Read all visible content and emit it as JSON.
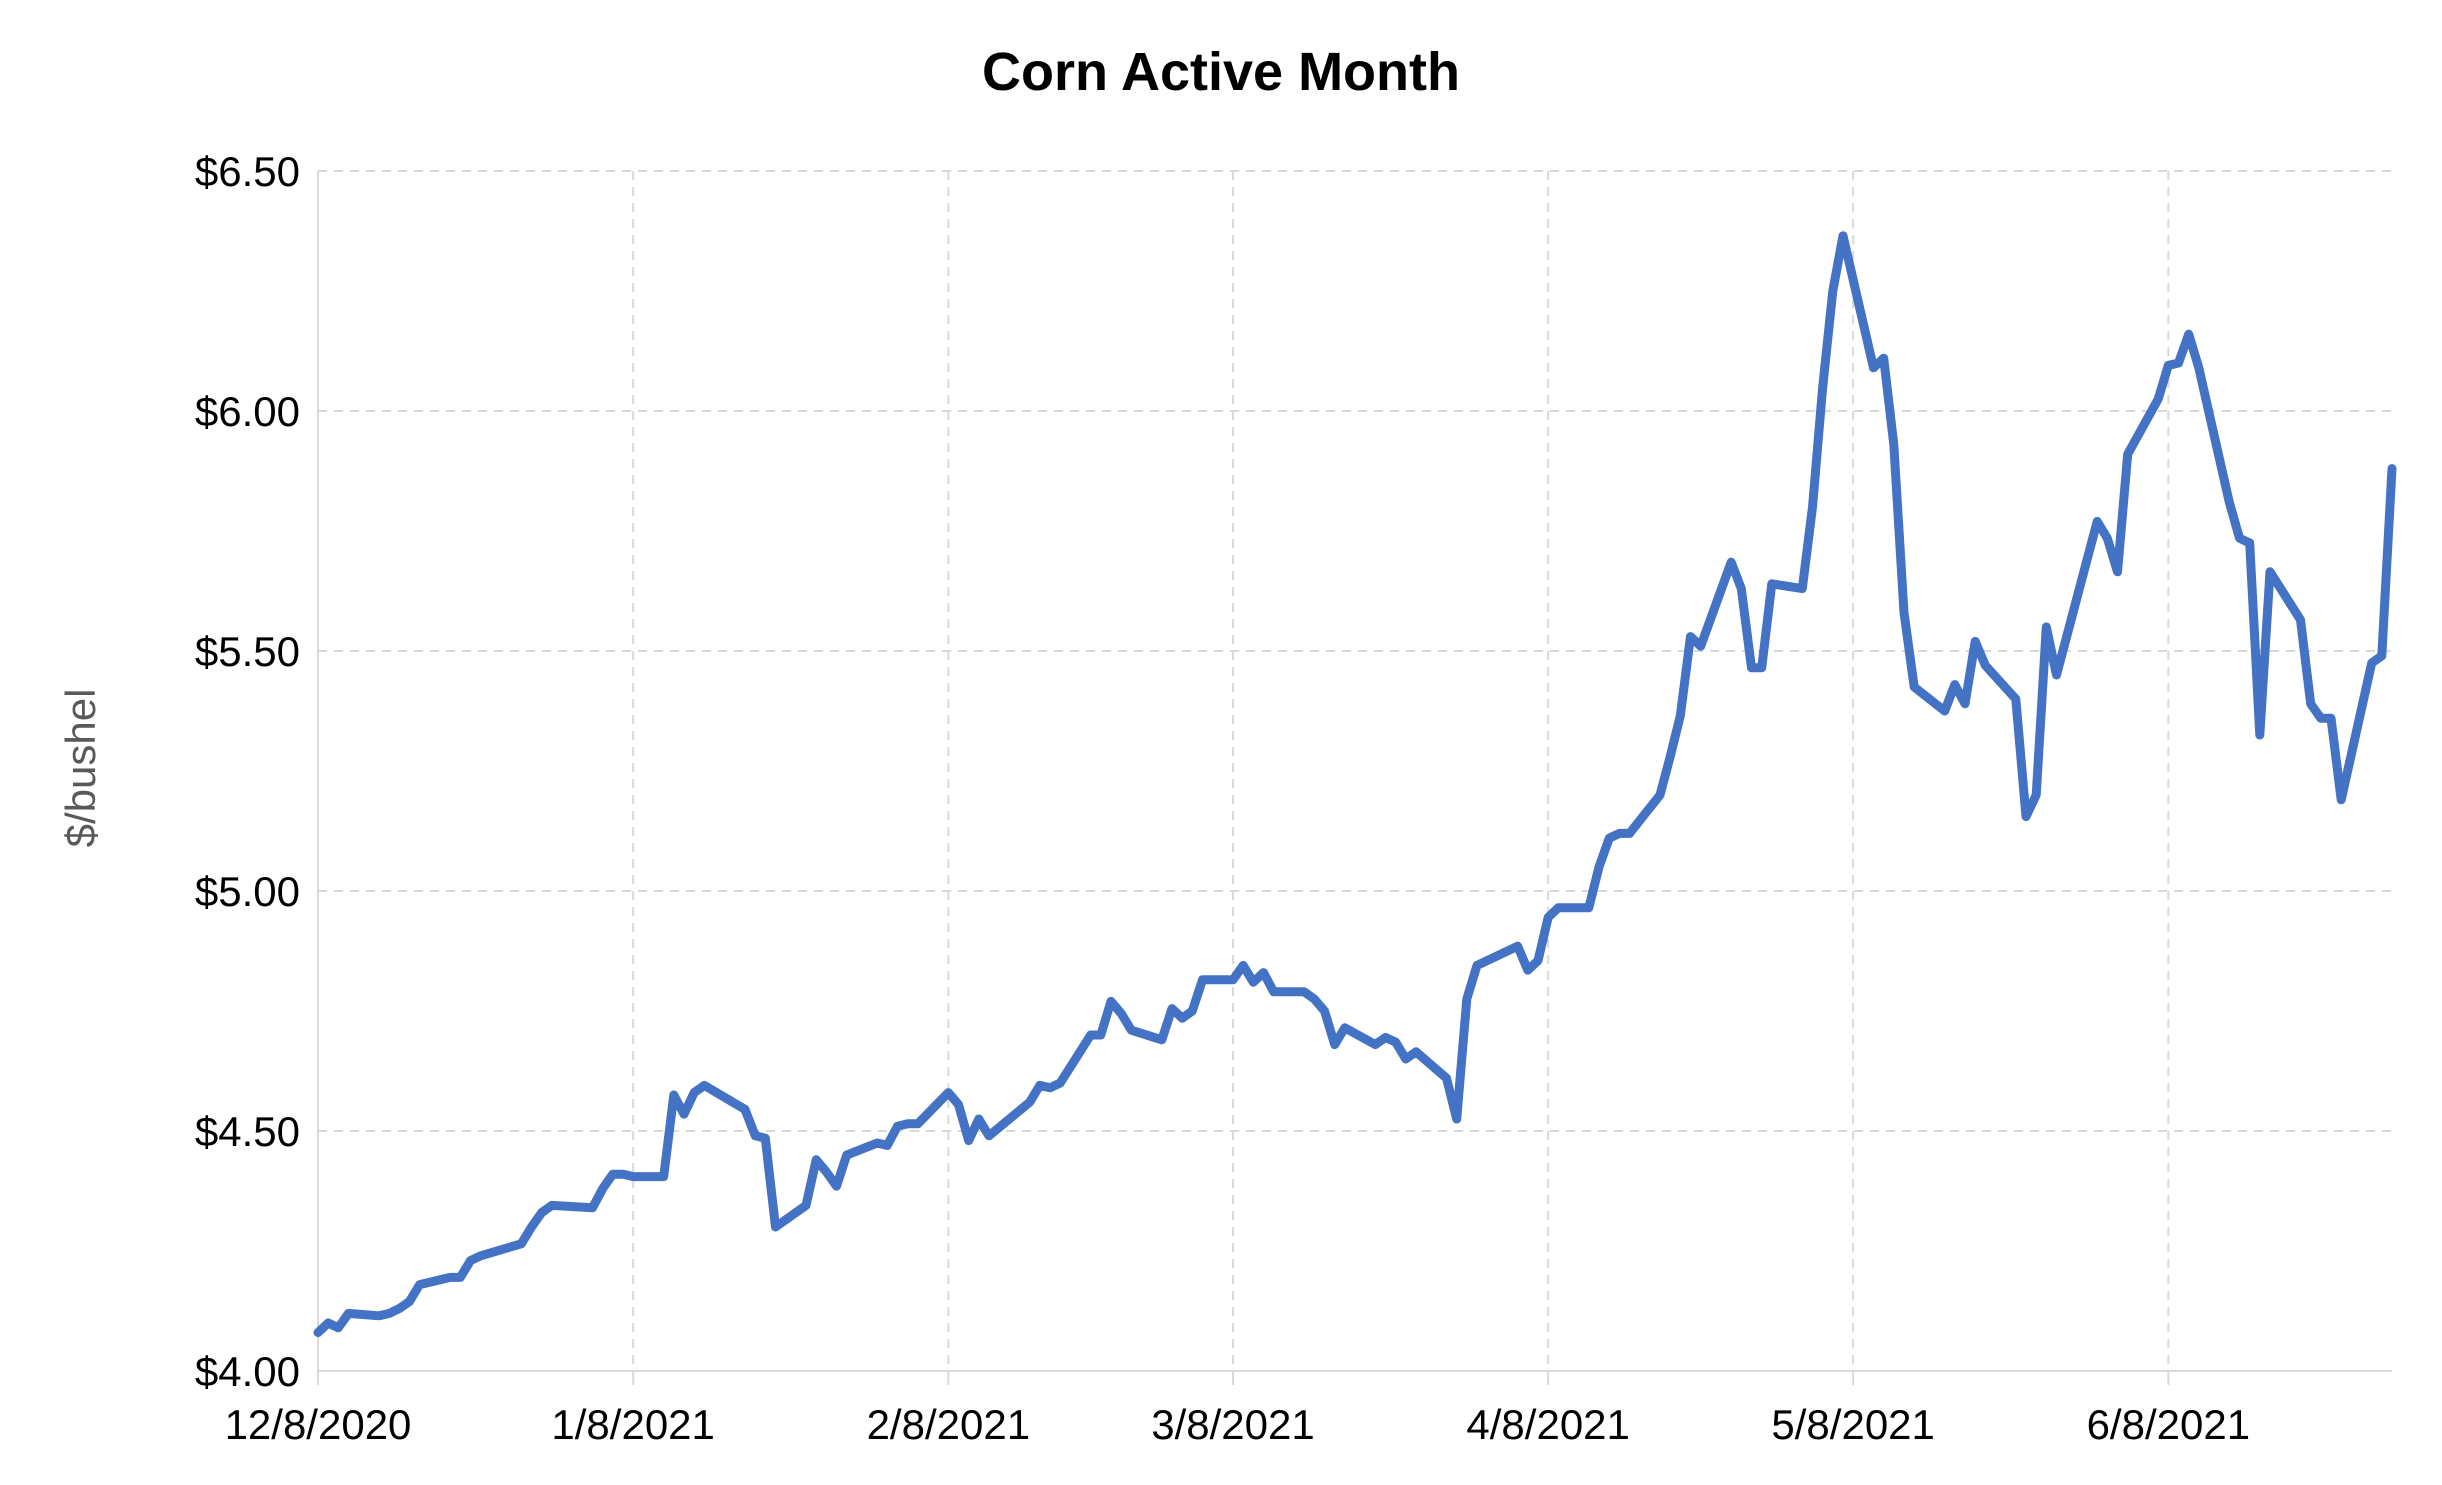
{
  "chart_data": {
    "type": "line",
    "title": "Corn Active Month",
    "xlabel": "",
    "ylabel": "$/bushel",
    "x_start": "2020-12-08",
    "x_end": "2021-06-30",
    "x_ticks": [
      {
        "date": "2020-12-08",
        "label": "12/8/2020"
      },
      {
        "date": "2021-01-08",
        "label": "1/8/2021"
      },
      {
        "date": "2021-02-08",
        "label": "2/8/2021"
      },
      {
        "date": "2021-03-08",
        "label": "3/8/2021"
      },
      {
        "date": "2021-04-08",
        "label": "4/8/2021"
      },
      {
        "date": "2021-05-08",
        "label": "5/8/2021"
      },
      {
        "date": "2021-06-08",
        "label": "6/8/2021"
      }
    ],
    "ylim": [
      4.0,
      6.5
    ],
    "y_ticks": [
      {
        "value": 4.0,
        "label": "$4.00"
      },
      {
        "value": 4.5,
        "label": "$4.50"
      },
      {
        "value": 5.0,
        "label": "$5.00"
      },
      {
        "value": 5.5,
        "label": "$5.50"
      },
      {
        "value": 6.0,
        "label": "$6.00"
      },
      {
        "value": 6.5,
        "label": "$6.50"
      }
    ],
    "grid": true,
    "legend": "none",
    "series": [
      {
        "color": "#4472c4",
        "points": [
          [
            "2020-12-08",
            4.08
          ],
          [
            "2020-12-09",
            4.1
          ],
          [
            "2020-12-10",
            4.09
          ],
          [
            "2020-12-11",
            4.12
          ],
          [
            "2020-12-14",
            4.115
          ],
          [
            "2020-12-15",
            4.12
          ],
          [
            "2020-12-16",
            4.13
          ],
          [
            "2020-12-17",
            4.145
          ],
          [
            "2020-12-18",
            4.18
          ],
          [
            "2020-12-21",
            4.195
          ],
          [
            "2020-12-22",
            4.195
          ],
          [
            "2020-12-23",
            4.23
          ],
          [
            "2020-12-24",
            4.24
          ],
          [
            "2020-12-28",
            4.265
          ],
          [
            "2020-12-29",
            4.3
          ],
          [
            "2020-12-30",
            4.33
          ],
          [
            "2020-12-31",
            4.345
          ],
          [
            "2021-01-04",
            4.34
          ],
          [
            "2021-01-05",
            4.38
          ],
          [
            "2021-01-06",
            4.41
          ],
          [
            "2021-01-07",
            4.41
          ],
          [
            "2021-01-08",
            4.405
          ],
          [
            "2021-01-11",
            4.405
          ],
          [
            "2021-01-12",
            4.575
          ],
          [
            "2021-01-13",
            4.535
          ],
          [
            "2021-01-14",
            4.58
          ],
          [
            "2021-01-15",
            4.595
          ],
          [
            "2021-01-19",
            4.545
          ],
          [
            "2021-01-20",
            4.49
          ],
          [
            "2021-01-21",
            4.485
          ],
          [
            "2021-01-22",
            4.3
          ],
          [
            "2021-01-25",
            4.345
          ],
          [
            "2021-01-26",
            4.44
          ],
          [
            "2021-01-27",
            4.415
          ],
          [
            "2021-01-28",
            4.385
          ],
          [
            "2021-01-29",
            4.45
          ],
          [
            "2021-02-01",
            4.475
          ],
          [
            "2021-02-02",
            4.47
          ],
          [
            "2021-02-03",
            4.51
          ],
          [
            "2021-02-04",
            4.515
          ],
          [
            "2021-02-05",
            4.515
          ],
          [
            "2021-02-08",
            4.58
          ],
          [
            "2021-02-09",
            4.555
          ],
          [
            "2021-02-10",
            4.48
          ],
          [
            "2021-02-11",
            4.525
          ],
          [
            "2021-02-12",
            4.49
          ],
          [
            "2021-02-16",
            4.56
          ],
          [
            "2021-02-17",
            4.595
          ],
          [
            "2021-02-18",
            4.59
          ],
          [
            "2021-02-19",
            4.6
          ],
          [
            "2021-02-22",
            4.7
          ],
          [
            "2021-02-23",
            4.7
          ],
          [
            "2021-02-24",
            4.77
          ],
          [
            "2021-02-25",
            4.745
          ],
          [
            "2021-02-26",
            4.71
          ],
          [
            "2021-03-01",
            4.69
          ],
          [
            "2021-03-02",
            4.755
          ],
          [
            "2021-03-03",
            4.735
          ],
          [
            "2021-03-04",
            4.75
          ],
          [
            "2021-03-05",
            4.815
          ],
          [
            "2021-03-08",
            4.815
          ],
          [
            "2021-03-09",
            4.845
          ],
          [
            "2021-03-10",
            4.81
          ],
          [
            "2021-03-11",
            4.83
          ],
          [
            "2021-03-12",
            4.79
          ],
          [
            "2021-03-15",
            4.79
          ],
          [
            "2021-03-16",
            4.775
          ],
          [
            "2021-03-17",
            4.75
          ],
          [
            "2021-03-18",
            4.68
          ],
          [
            "2021-03-19",
            4.715
          ],
          [
            "2021-03-22",
            4.68
          ],
          [
            "2021-03-23",
            4.695
          ],
          [
            "2021-03-24",
            4.685
          ],
          [
            "2021-03-25",
            4.65
          ],
          [
            "2021-03-26",
            4.665
          ],
          [
            "2021-03-29",
            4.61
          ],
          [
            "2021-03-30",
            4.525
          ],
          [
            "2021-03-31",
            4.775
          ],
          [
            "2021-04-01",
            4.845
          ],
          [
            "2021-04-05",
            4.885
          ],
          [
            "2021-04-06",
            4.835
          ],
          [
            "2021-04-07",
            4.855
          ],
          [
            "2021-04-08",
            4.945
          ],
          [
            "2021-04-09",
            4.965
          ],
          [
            "2021-04-12",
            4.965
          ],
          [
            "2021-04-13",
            5.05
          ],
          [
            "2021-04-14",
            5.11
          ],
          [
            "2021-04-15",
            5.12
          ],
          [
            "2021-04-16",
            5.12
          ],
          [
            "2021-04-19",
            5.2
          ],
          [
            "2021-04-20",
            5.28
          ],
          [
            "2021-04-21",
            5.365
          ],
          [
            "2021-04-22",
            5.53
          ],
          [
            "2021-04-23",
            5.51
          ],
          [
            "2021-04-26",
            5.685
          ],
          [
            "2021-04-27",
            5.63
          ],
          [
            "2021-04-28",
            5.465
          ],
          [
            "2021-04-29",
            5.465
          ],
          [
            "2021-04-30",
            5.64
          ],
          [
            "2021-05-03",
            5.63
          ],
          [
            "2021-05-04",
            5.8
          ],
          [
            "2021-05-05",
            6.05
          ],
          [
            "2021-05-06",
            6.25
          ],
          [
            "2021-05-07",
            6.365
          ],
          [
            "2021-05-10",
            6.09
          ],
          [
            "2021-05-11",
            6.11
          ],
          [
            "2021-05-12",
            5.93
          ],
          [
            "2021-05-13",
            5.58
          ],
          [
            "2021-05-14",
            5.425
          ],
          [
            "2021-05-17",
            5.375
          ],
          [
            "2021-05-18",
            5.43
          ],
          [
            "2021-05-19",
            5.39
          ],
          [
            "2021-05-20",
            5.52
          ],
          [
            "2021-05-21",
            5.47
          ],
          [
            "2021-05-24",
            5.4
          ],
          [
            "2021-05-25",
            5.155
          ],
          [
            "2021-05-26",
            5.2
          ],
          [
            "2021-05-27",
            5.55
          ],
          [
            "2021-05-28",
            5.45
          ],
          [
            "2021-06-01",
            5.77
          ],
          [
            "2021-06-02",
            5.735
          ],
          [
            "2021-06-03",
            5.665
          ],
          [
            "2021-06-04",
            5.91
          ],
          [
            "2021-06-07",
            6.025
          ],
          [
            "2021-06-08",
            6.095
          ],
          [
            "2021-06-09",
            6.1
          ],
          [
            "2021-06-10",
            6.16
          ],
          [
            "2021-06-11",
            6.09
          ],
          [
            "2021-06-14",
            5.81
          ],
          [
            "2021-06-15",
            5.735
          ],
          [
            "2021-06-16",
            5.725
          ],
          [
            "2021-06-17",
            5.325
          ],
          [
            "2021-06-18",
            5.665
          ],
          [
            "2021-06-21",
            5.565
          ],
          [
            "2021-06-22",
            5.39
          ],
          [
            "2021-06-23",
            5.36
          ],
          [
            "2021-06-24",
            5.36
          ],
          [
            "2021-06-25",
            5.19
          ],
          [
            "2021-06-28",
            5.475
          ],
          [
            "2021-06-29",
            5.49
          ],
          [
            "2021-06-30",
            5.88
          ]
        ]
      }
    ]
  }
}
